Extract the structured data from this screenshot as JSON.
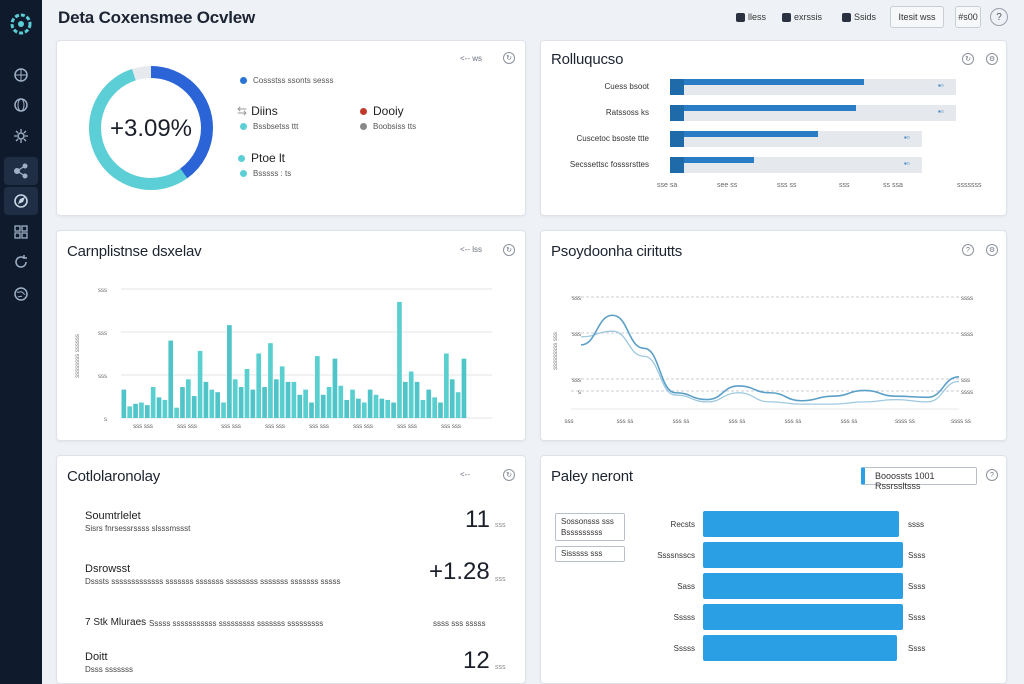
{
  "header": {
    "title": "Deta Coxensmee Ocvlew",
    "btn1": "lless",
    "btn2": "exrssis",
    "btn3": "Ssids",
    "btn4": "Itesit wss",
    "btn5": "#s00",
    "help": "?"
  },
  "sidebar": {
    "items": [
      "overview",
      "globe",
      "settings",
      "share",
      "explore",
      "grid",
      "refresh",
      "world"
    ]
  },
  "donut": {
    "value": "+3.09%",
    "tool": "<-- ws",
    "legend_title": "Cossstss ssonts sesss",
    "dot1_color": "#2a76d2",
    "item1_label": "Diins",
    "item1_sub": "Bssbsetss ttt",
    "item2_label": "Dooiy",
    "item2_sub": "Boobsiss tts",
    "item2_color": "#c0392b",
    "item3_label": "Ptoe lt",
    "item3_sub": "Bsssss : ts",
    "accent_color": "#2a64d6",
    "teal_color": "#5ccfd6"
  },
  "rollups": {
    "title": "Rolluqucso",
    "rows": [
      {
        "label": "Cuess bsoot",
        "fill": 0.67
      },
      {
        "label": "Ratssoss ks",
        "fill": 0.64
      },
      {
        "label": "Cuscetoc bsoste ttte",
        "fill": 0.51
      },
      {
        "label": "Secssettsc fosssrsttes",
        "fill": 0.29
      }
    ],
    "axis": [
      "sse sa",
      "see ss",
      "sss ss",
      "sss",
      "ss ssa",
      "sssssss"
    ]
  },
  "complishes": {
    "title": "Carnplistnse dsxelav",
    "tool": "<-- lss",
    "y_ticks": [
      "sss",
      "sss",
      "sss",
      "s"
    ],
    "y_label": "ssssssss ssssss",
    "x_ticks": [
      "sss sss",
      "sss sss",
      "sss sss",
      "sss sss",
      "sss sss",
      "sss sss",
      "sss sss",
      "sss sss"
    ]
  },
  "chart_data": {
    "type": "bar",
    "title": "Carnplistnse dsxelav",
    "values": [
      22,
      9,
      11,
      12,
      10,
      24,
      16,
      14,
      60,
      8,
      24,
      30,
      17,
      52,
      28,
      22,
      20,
      12,
      72,
      30,
      24,
      38,
      22,
      50,
      24,
      58,
      30,
      40,
      28,
      28,
      18,
      22,
      12,
      48,
      18,
      24,
      46,
      25,
      14,
      22,
      15,
      12,
      22,
      18,
      15,
      14,
      12,
      90,
      28,
      36,
      28,
      14,
      22,
      16,
      12,
      50,
      30,
      20,
      46
    ],
    "ylim": [
      0,
      100
    ]
  },
  "psychometrics": {
    "title": "Psoydoonha ciritutts",
    "y_left": [
      "sss",
      "sss",
      "sss",
      "s"
    ],
    "y_right": [
      "ssss",
      "ssss",
      "sss",
      "ssss"
    ],
    "x_ticks": [
      "sss",
      "sss ss",
      "sss ss",
      "sss ss",
      "sss ss",
      "sss ss",
      "ssss ss",
      "ssss ss"
    ],
    "y_label": "sssssssss sss",
    "line1": [
      0.58,
      0.84,
      0.55,
      0.16,
      0.1,
      0.22,
      0.16,
      0.09,
      0.13,
      0.18,
      0.13,
      0.12,
      0.3
    ],
    "line2": [
      0.65,
      0.7,
      0.48,
      0.14,
      0.08,
      0.16,
      0.08,
      0.06,
      0.06,
      0.08,
      0.1,
      0.08,
      0.26
    ]
  },
  "cohorts": {
    "title": "Cotlolaronolay",
    "tool": "<--",
    "rows": [
      {
        "label": "Soumtrlelet",
        "sub": "Sisrs fnrsessrssss slsssmssst",
        "value": "11",
        "unit": "sss"
      },
      {
        "label": "Dsrowsst",
        "sub": "Dsssts sssssssssssss sssssss sssssss ssssssss sssssss sssssss sssss",
        "value": "+1.28",
        "unit": "sss"
      },
      {
        "label": "7 Stk Mluraes",
        "sub": "Sssss sssssssssss sssssssss sssssss sssssssss",
        "value": "",
        "unit": "ssss sss sssss"
      },
      {
        "label": "Doitt",
        "sub": "Dsss sssssss",
        "value": "12",
        "unit": "sss"
      }
    ]
  },
  "policy": {
    "title": "Paley neront",
    "badge": "Booossts 1001 Rssrssltsss",
    "legend1": "Sossonsss sss Bsssssssss",
    "legend2": "Sisssss sss",
    "rows": [
      {
        "label": "Recsts",
        "value": "ssss",
        "fill": 0.98
      },
      {
        "label": "Ssssnsscs",
        "value": "Ssss",
        "fill": 1.0
      },
      {
        "label": "Sass",
        "value": "Ssss",
        "fill": 1.0
      },
      {
        "label": "Sssss",
        "value": "Ssss",
        "fill": 1.0
      },
      {
        "label": "Sssss",
        "value": "Ssss",
        "fill": 0.97
      }
    ]
  }
}
